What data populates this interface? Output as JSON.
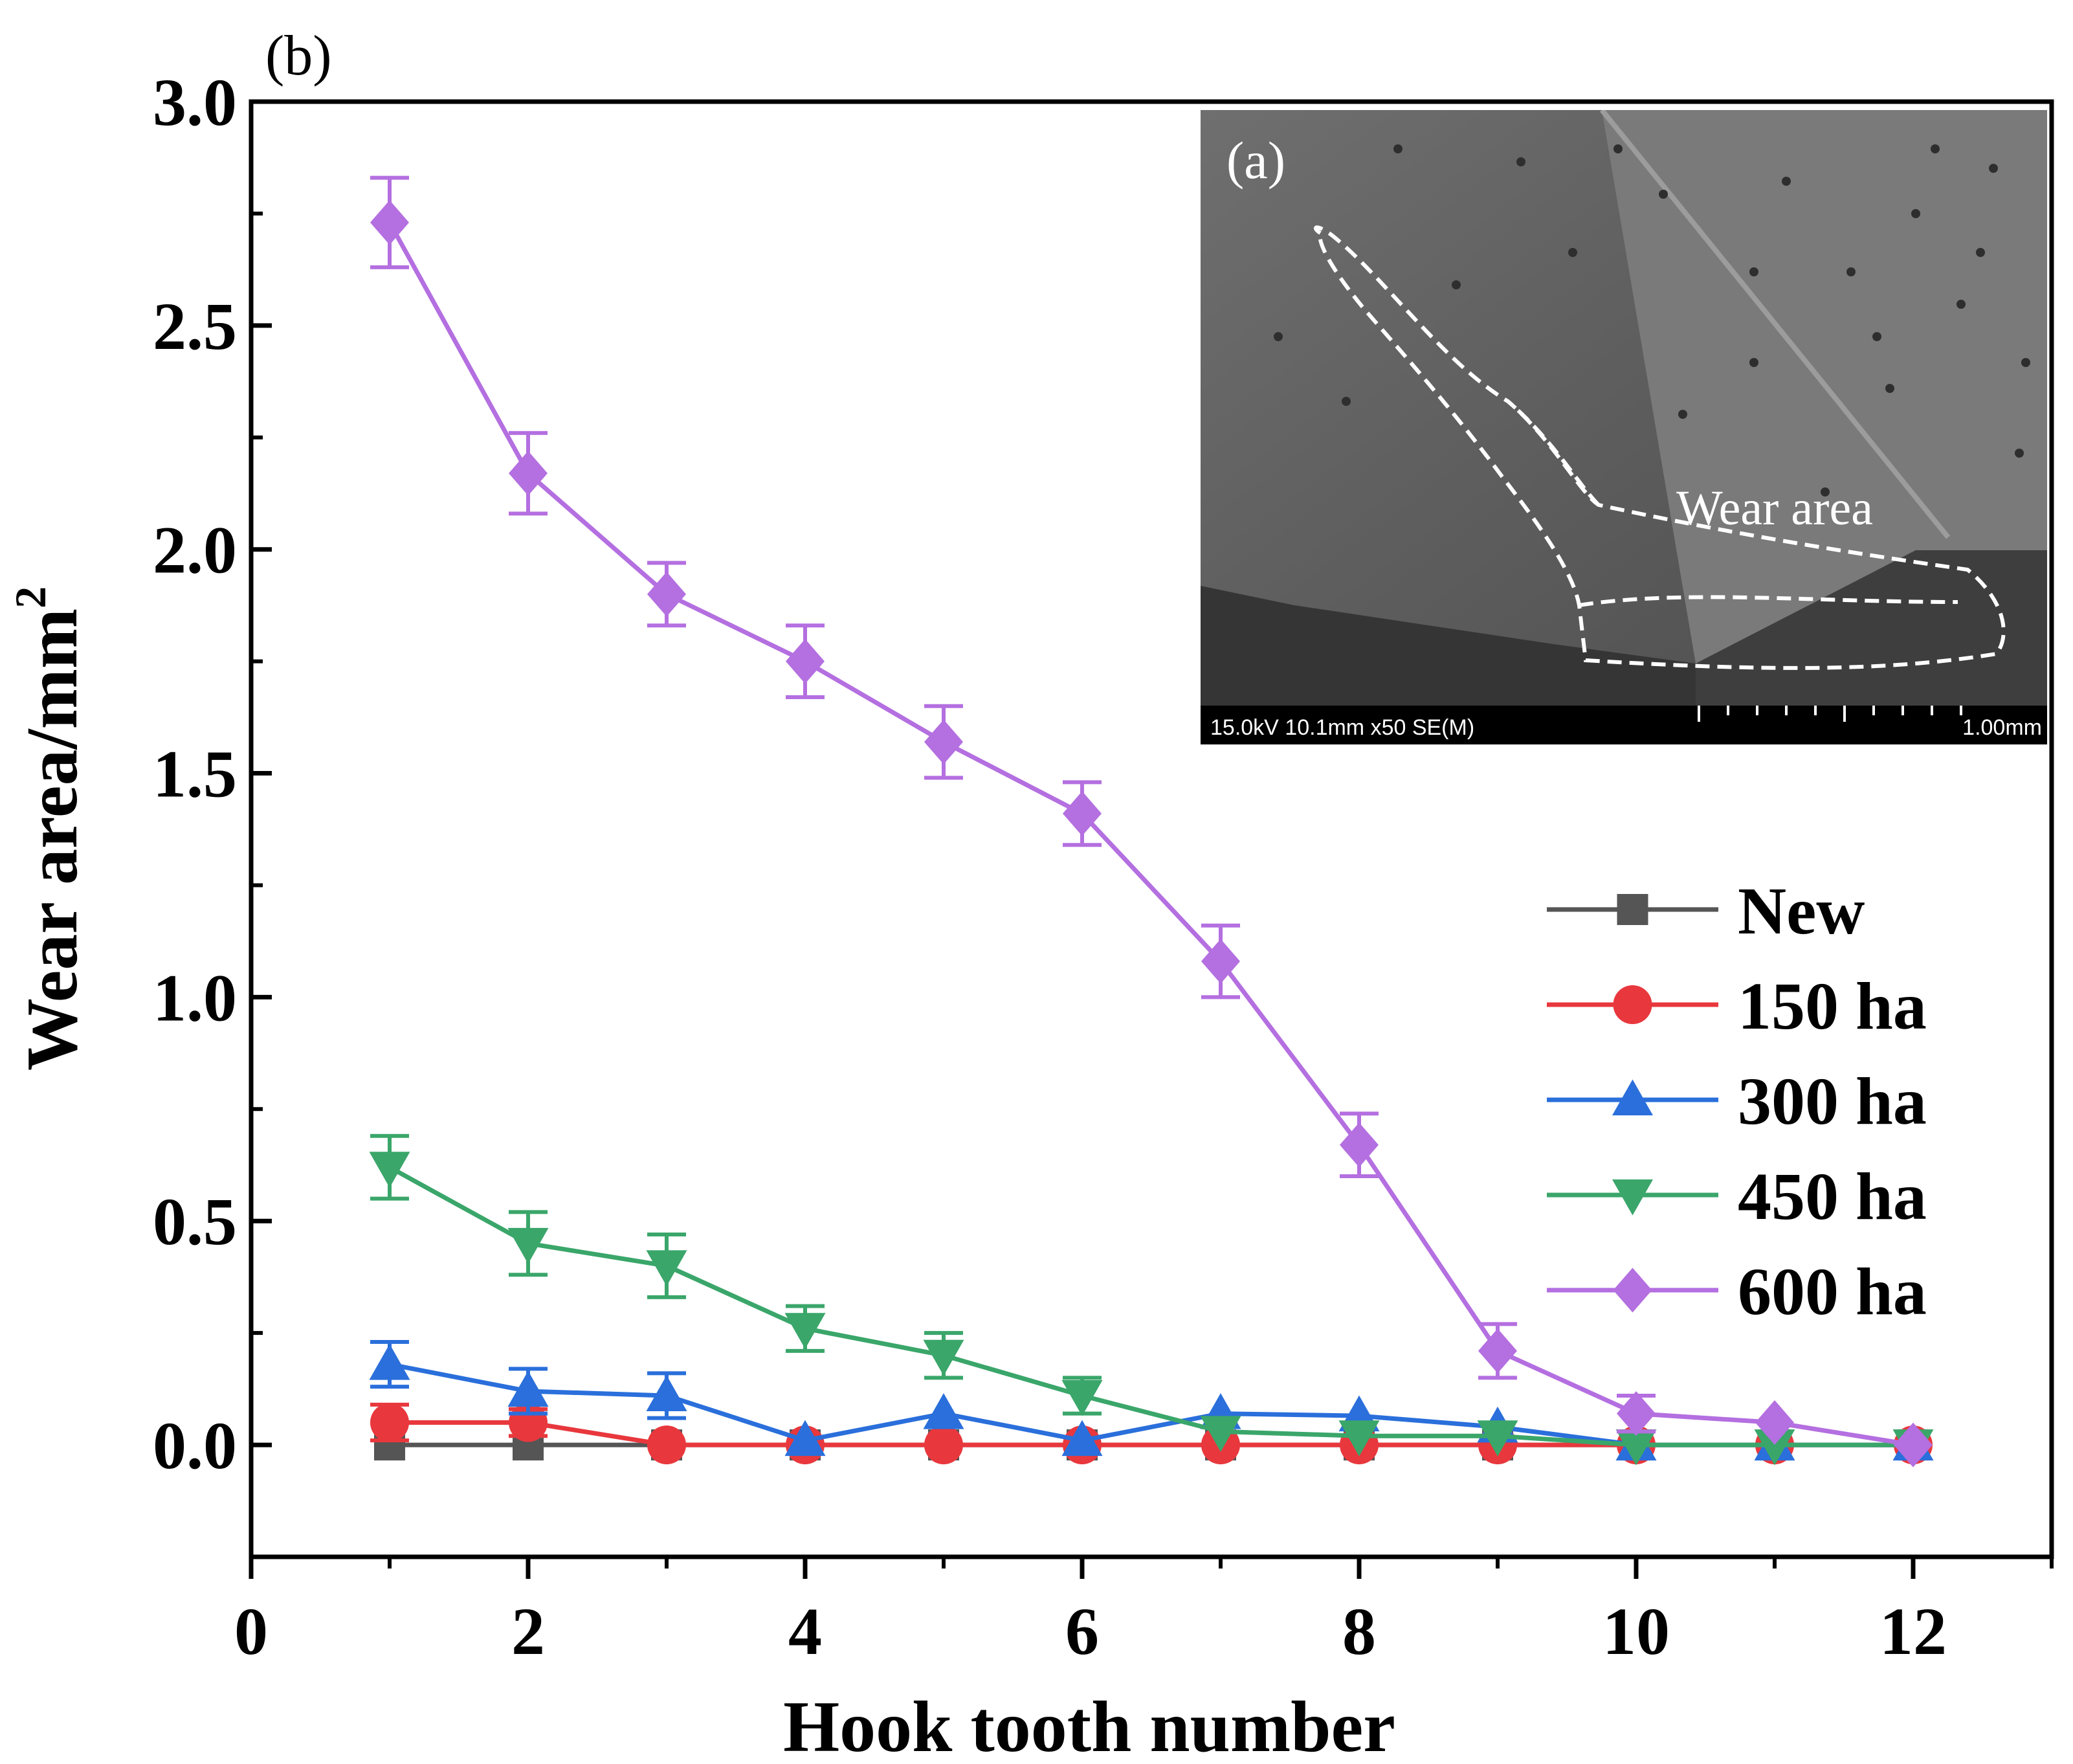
{
  "chart_data": {
    "type": "line",
    "panel_label": "(b)",
    "xlabel": "Hook tooth number",
    "ylabel": "Wear area/mm",
    "ylabel_superscript": "2",
    "xlim": [
      0,
      13
    ],
    "ylim": [
      -0.25,
      3.0
    ],
    "xticks": [
      0,
      2,
      4,
      6,
      8,
      10,
      12
    ],
    "yticks": [
      0.0,
      0.5,
      1.0,
      1.5,
      2.0,
      2.5,
      3.0
    ],
    "ytick_labels": [
      "0.0",
      "0.5",
      "1.0",
      "1.5",
      "2.0",
      "2.5",
      "3.0"
    ],
    "x": [
      1,
      2,
      3,
      4,
      5,
      6,
      7,
      8,
      9,
      10,
      11,
      12
    ],
    "series": [
      {
        "name": "New",
        "marker": "square",
        "color": "#555555",
        "values": [
          0.0,
          0.0,
          0.0,
          0.0,
          0.0,
          0.0,
          0.0,
          0.0,
          0.0,
          0.0,
          0.0,
          0.0
        ],
        "errors": [
          0,
          0,
          0,
          0,
          0,
          0,
          0,
          0,
          0,
          0,
          0,
          0
        ]
      },
      {
        "name": "150 ha",
        "marker": "circle",
        "color": "#e8383d",
        "values": [
          0.05,
          0.05,
          0.0,
          0.0,
          0.0,
          0.0,
          0.0,
          0.0,
          0.0,
          0.0,
          0.0,
          0.0
        ],
        "errors": [
          0.04,
          0.03,
          0.0,
          0.0,
          0.0,
          0.0,
          0.0,
          0.0,
          0.0,
          0.0,
          0.0,
          0.0
        ]
      },
      {
        "name": "300 ha",
        "marker": "triangle-up",
        "color": "#2a6fdb",
        "values": [
          0.18,
          0.12,
          0.11,
          0.01,
          0.07,
          0.01,
          0.07,
          0.065,
          0.04,
          0.0,
          0.0,
          0.0
        ],
        "errors": [
          0.05,
          0.05,
          0.05,
          0.0,
          0.0,
          0.0,
          0.0,
          0.0,
          0.0,
          0.0,
          0.0,
          0.0
        ]
      },
      {
        "name": "450 ha",
        "marker": "triangle-down",
        "color": "#3aa66a",
        "values": [
          0.62,
          0.45,
          0.4,
          0.26,
          0.2,
          0.11,
          0.03,
          0.02,
          0.02,
          0.0,
          0.0,
          0.0
        ],
        "errors": [
          0.07,
          0.07,
          0.07,
          0.05,
          0.05,
          0.04,
          0.0,
          0.0,
          0.0,
          0.0,
          0.0,
          0.0
        ]
      },
      {
        "name": "600 ha",
        "marker": "diamond",
        "color": "#b46fe0",
        "values": [
          2.73,
          2.17,
          1.9,
          1.75,
          1.57,
          1.41,
          1.08,
          0.67,
          0.21,
          0.07,
          0.05,
          0.0
        ],
        "errors": [
          0.1,
          0.09,
          0.07,
          0.08,
          0.08,
          0.07,
          0.08,
          0.07,
          0.06,
          0.04,
          0.0,
          0.0
        ]
      }
    ],
    "legend_position": "middle-right",
    "inset": {
      "label": "(a)",
      "annotation": "Wear area",
      "scale_info": "15.0kV 10.1mm x50 SE(M)",
      "scale_bar_value": "1.00mm",
      "position": "top-right"
    }
  }
}
